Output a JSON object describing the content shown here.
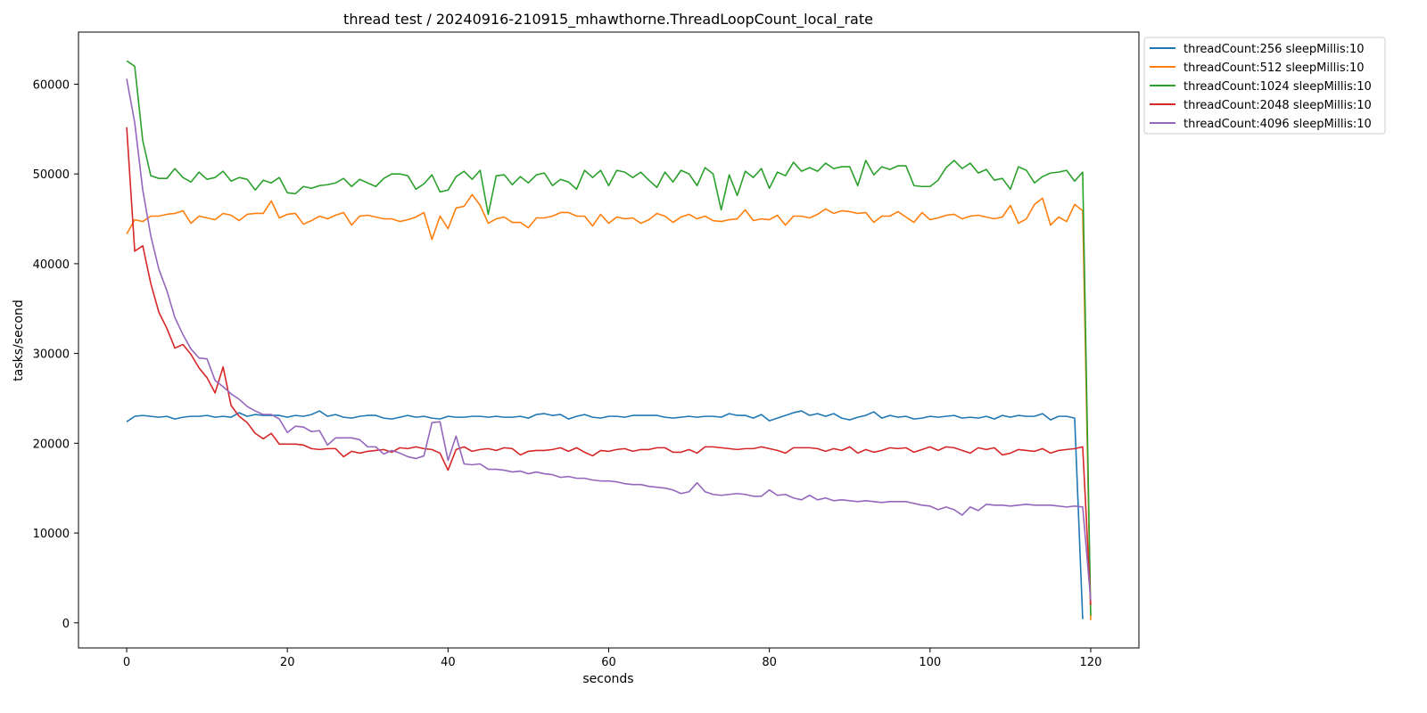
{
  "chart_data": {
    "type": "line",
    "title": "thread test / 20240916-210915_mhawthorne.ThreadLoopCount_local_rate",
    "xlabel": "seconds",
    "ylabel": "tasks/second",
    "xlim": [
      -6,
      126
    ],
    "ylim": [
      -2800,
      65800
    ],
    "xticks": [
      0,
      20,
      40,
      60,
      80,
      100,
      120
    ],
    "yticks": [
      0,
      10000,
      20000,
      30000,
      40000,
      50000,
      60000
    ],
    "grid": false,
    "legend_position": "outside-top-right",
    "series": [
      {
        "name": "threadCount:256 sleepMillis:10",
        "color": "#1f77b4",
        "values": [
          22400,
          23000,
          23100,
          23000,
          22900,
          23000,
          22700,
          22900,
          23000,
          23000,
          23100,
          22900,
          23000,
          22900,
          23400,
          23000,
          23200,
          23100,
          23100,
          23100,
          22900,
          23100,
          23000,
          23200,
          23600,
          23000,
          23200,
          22900,
          22800,
          23000,
          23100,
          23100,
          22800,
          22700,
          22900,
          23100,
          22900,
          23000,
          22800,
          22700,
          23000,
          22900,
          22900,
          23000,
          23000,
          22900,
          23000,
          22900,
          22900,
          23000,
          22800,
          23200,
          23300,
          23100,
          23200,
          22700,
          23000,
          23200,
          22900,
          22800,
          23000,
          23000,
          22900,
          23100,
          23100,
          23100,
          23100,
          22900,
          22800,
          22900,
          23000,
          22900,
          23000,
          23000,
          22900,
          23300,
          23100,
          23100,
          22800,
          23200,
          22500,
          22800,
          23100,
          23400,
          23600,
          23100,
          23300,
          23000,
          23300,
          22800,
          22600,
          22900,
          23100,
          23500,
          22800,
          23100,
          22900,
          23000,
          22700,
          22800,
          23000,
          22900,
          23000,
          23100,
          22800,
          22900,
          22800,
          23000,
          22700,
          23100,
          22900,
          23100,
          23000,
          23000,
          23300,
          22600,
          23000,
          23000,
          22800,
          400
        ]
      },
      {
        "name": "threadCount:512 sleepMillis:10",
        "color": "#ff7f0e",
        "values": [
          43300,
          44900,
          44700,
          45300,
          45300,
          45500,
          45600,
          45900,
          44500,
          45300,
          45100,
          44900,
          45600,
          45400,
          44800,
          45500,
          45600,
          45600,
          47000,
          45100,
          45500,
          45600,
          44400,
          44800,
          45300,
          45000,
          45400,
          45700,
          44300,
          45300,
          45400,
          45200,
          45000,
          45000,
          44700,
          44900,
          45200,
          45700,
          42700,
          45300,
          43900,
          46200,
          46400,
          47700,
          46500,
          44500,
          45000,
          45200,
          44600,
          44600,
          44000,
          45100,
          45100,
          45300,
          45700,
          45700,
          45300,
          45300,
          44200,
          45500,
          44500,
          45200,
          45000,
          45100,
          44500,
          44900,
          45600,
          45300,
          44600,
          45200,
          45500,
          45000,
          45300,
          44800,
          44700,
          44900,
          45000,
          46000,
          44800,
          45000,
          44900,
          45400,
          44300,
          45300,
          45300,
          45100,
          45500,
          46100,
          45600,
          45900,
          45800,
          45600,
          45700,
          44600,
          45300,
          45300,
          45800,
          45200,
          44600,
          45700,
          44900,
          45100,
          45400,
          45500,
          45000,
          45300,
          45400,
          45200,
          45000,
          45200,
          46500,
          44500,
          45000,
          46600,
          47300,
          44300,
          45200,
          44700,
          46600,
          45900,
          300
        ]
      },
      {
        "name": "threadCount:1024 sleepMillis:10",
        "color": "#2ca02c",
        "values": [
          62600,
          62000,
          53700,
          49800,
          49500,
          49500,
          50600,
          49600,
          49100,
          50200,
          49400,
          49600,
          50300,
          49200,
          49600,
          49400,
          48200,
          49300,
          49000,
          49600,
          47900,
          47800,
          48600,
          48400,
          48700,
          48800,
          49000,
          49500,
          48600,
          49400,
          49000,
          48600,
          49500,
          50000,
          50000,
          49800,
          48300,
          48900,
          49900,
          48000,
          48200,
          49700,
          50300,
          49400,
          50400,
          45500,
          49800,
          49900,
          48800,
          49700,
          49000,
          49900,
          50100,
          48700,
          49400,
          49100,
          48300,
          50400,
          49600,
          50400,
          48700,
          50400,
          50200,
          49600,
          50200,
          49300,
          48500,
          50200,
          49100,
          50400,
          50000,
          48700,
          50700,
          50000,
          46000,
          49900,
          47600,
          50300,
          49600,
          50600,
          48400,
          50200,
          49800,
          51300,
          50300,
          50700,
          50300,
          51200,
          50600,
          50800,
          50800,
          48700,
          51500,
          49900,
          50800,
          50500,
          50900,
          50900,
          48700,
          48600,
          48600,
          49300,
          50700,
          51500,
          50600,
          51200,
          50100,
          50500,
          49300,
          49500,
          48300,
          50800,
          50400,
          49000,
          49700,
          50100,
          50200,
          50400,
          49200,
          50200,
          800
        ]
      },
      {
        "name": "threadCount:2048 sleepMillis:10",
        "color": "#d62728",
        "values": [
          55200,
          41400,
          42000,
          37800,
          34600,
          32800,
          30600,
          31000,
          29900,
          28400,
          27300,
          25600,
          28500,
          24200,
          23000,
          22300,
          21100,
          20500,
          21100,
          19900,
          19900,
          19900,
          19800,
          19400,
          19300,
          19400,
          19400,
          18500,
          19100,
          18900,
          19100,
          19200,
          19300,
          19000,
          19500,
          19400,
          19600,
          19400,
          19300,
          18900,
          17000,
          19300,
          19600,
          19100,
          19300,
          19400,
          19200,
          19500,
          19400,
          18700,
          19100,
          19200,
          19200,
          19300,
          19500,
          19100,
          19500,
          19000,
          18600,
          19200,
          19100,
          19300,
          19400,
          19100,
          19300,
          19300,
          19500,
          19500,
          19000,
          19000,
          19300,
          18900,
          19600,
          19600,
          19500,
          19400,
          19300,
          19400,
          19400,
          19600,
          19400,
          19200,
          18900,
          19500,
          19500,
          19500,
          19400,
          19100,
          19400,
          19200,
          19600,
          18900,
          19300,
          19000,
          19200,
          19500,
          19400,
          19500,
          19000,
          19300,
          19600,
          19200,
          19600,
          19500,
          19200,
          18900,
          19500,
          19300,
          19500,
          18700,
          18900,
          19300,
          19200,
          19100,
          19400,
          18900,
          19200,
          19300,
          19400,
          19600,
          2000
        ]
      },
      {
        "name": "threadCount:4096 sleepMillis:10",
        "color": "#9467bd",
        "values": [
          60600,
          55700,
          48200,
          43100,
          39400,
          37000,
          34000,
          32100,
          30500,
          29500,
          29400,
          27000,
          26300,
          25500,
          24900,
          24100,
          23600,
          23200,
          23200,
          22700,
          21200,
          21900,
          21800,
          21300,
          21400,
          19800,
          20600,
          20600,
          20600,
          20400,
          19600,
          19600,
          18800,
          19200,
          18900,
          18500,
          18300,
          18600,
          22300,
          22400,
          18100,
          20800,
          17700,
          17600,
          17700,
          17100,
          17100,
          17000,
          16800,
          16900,
          16600,
          16800,
          16600,
          16500,
          16200,
          16300,
          16100,
          16100,
          15900,
          15800,
          15800,
          15700,
          15500,
          15400,
          15400,
          15200,
          15100,
          15000,
          14800,
          14400,
          14600,
          15600,
          14600,
          14300,
          14200,
          14300,
          14400,
          14300,
          14100,
          14100,
          14800,
          14200,
          14300,
          13900,
          13700,
          14200,
          13700,
          13900,
          13600,
          13700,
          13600,
          13500,
          13600,
          13500,
          13400,
          13500,
          13500,
          13500,
          13300,
          13100,
          13000,
          12600,
          12900,
          12600,
          12000,
          12900,
          12500,
          13200,
          13100,
          13100,
          13000,
          13100,
          13200,
          13100,
          13100,
          13100,
          13000,
          12900,
          13000,
          12900,
          2500
        ]
      }
    ]
  }
}
